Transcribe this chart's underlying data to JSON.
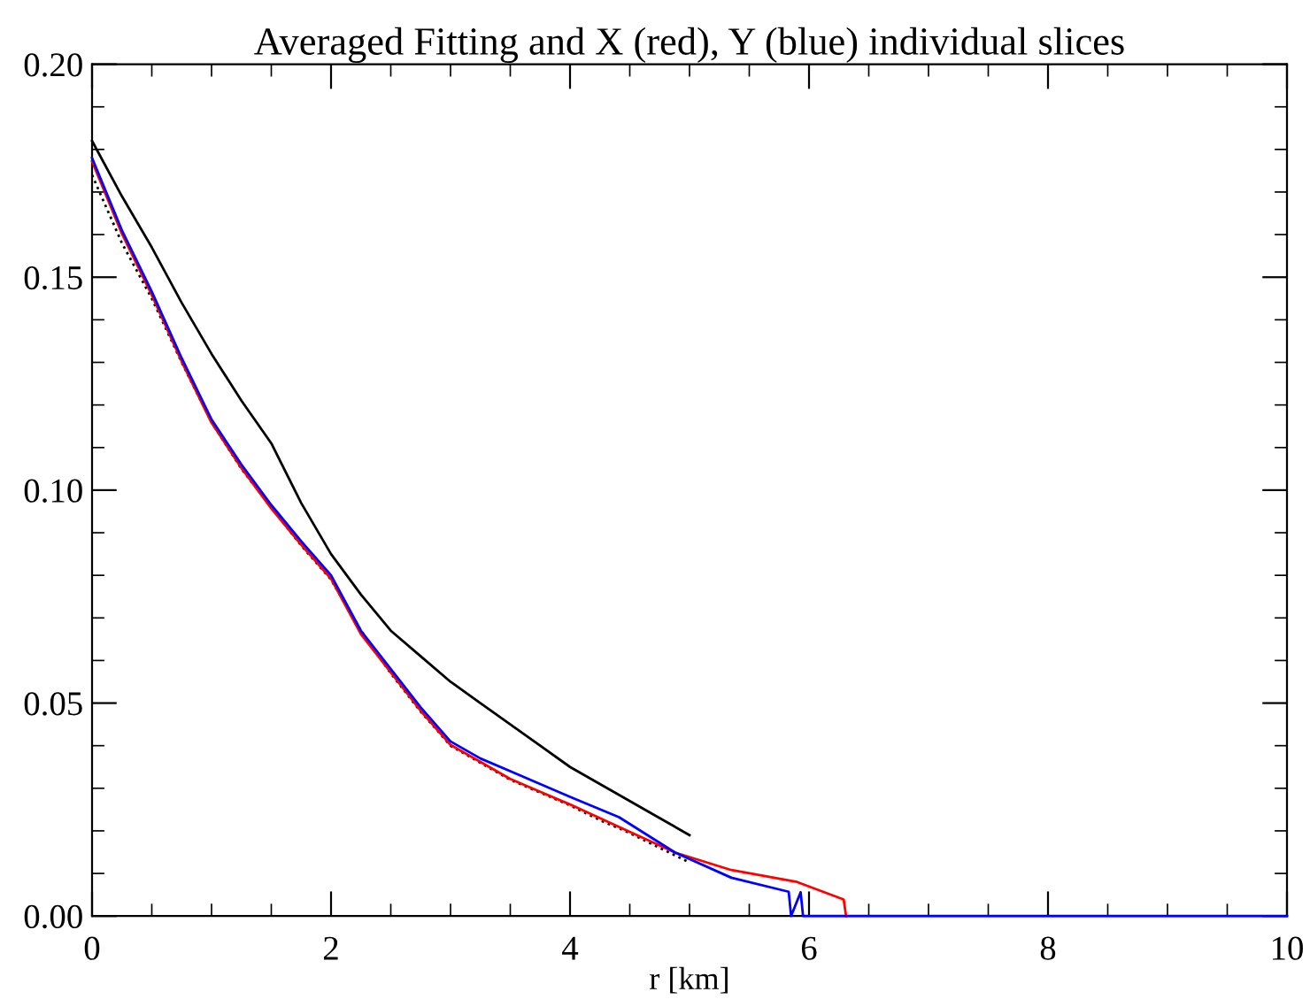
{
  "chart_data": {
    "type": "line",
    "title": "Averaged Fitting and X (red), Y (blue) individual slices",
    "xlabel": "r [km]",
    "xlim": [
      0,
      10
    ],
    "xticks": [
      0,
      2,
      4,
      6,
      8,
      10
    ],
    "ylim": [
      0,
      0.2
    ],
    "yticks": [
      {
        "value": 0,
        "label": "0.00"
      },
      {
        "value": 0.05,
        "label": "0.05"
      },
      {
        "value": 0.1,
        "label": "0.10"
      },
      {
        "value": 0.15,
        "label": "0.15"
      },
      {
        "value": 0.2,
        "label": "0.20"
      }
    ],
    "grid": false,
    "legend": false,
    "series": [
      {
        "color": "#000000",
        "line_style": "dotted",
        "x": [
          0,
          0.25,
          0.5,
          0.75,
          1,
          1.25,
          1.5,
          1.75,
          2,
          2.25,
          2.5,
          2.75,
          3,
          3.25,
          3.5,
          3.75,
          4,
          4.25,
          4.5,
          4.75,
          5
        ],
        "values": [
          0.174,
          0.158,
          0.145,
          0.13,
          0.116,
          0.105,
          0.096,
          0.087,
          0.079,
          0.067,
          0.057,
          0.048,
          0.04,
          0.036,
          0.032,
          0.029,
          0.026,
          0.0225,
          0.0195,
          0.016,
          0.0126
        ]
      },
      {
        "color": "#000000",
        "line_style": "solid",
        "x": [
          0,
          0.25,
          0.5,
          0.75,
          1,
          1.25,
          1.5,
          1.75,
          2,
          2.25,
          2.5,
          2.75,
          3,
          3.25,
          3.5,
          3.75,
          4,
          4.25,
          4.5,
          4.75,
          5
        ],
        "values": [
          0.182,
          0.169,
          0.157,
          0.144,
          0.132,
          0.121,
          0.111,
          0.097,
          0.085,
          0.0755,
          0.067,
          0.061,
          0.055,
          0.05,
          0.045,
          0.04,
          0.035,
          0.031,
          0.027,
          0.023,
          0.019
        ]
      },
      {
        "color": "#ff0000",
        "line_style": "solid",
        "x": [
          0,
          0.25,
          0.5,
          0.75,
          1,
          1.25,
          1.5,
          1.75,
          2,
          2.25,
          2.5,
          2.75,
          3,
          3.25,
          3.5,
          3.75,
          4,
          4.41,
          4.88,
          5.35,
          5.9,
          6.29,
          6.31
        ],
        "values": [
          0.1772,
          0.1602,
          0.1458,
          0.1302,
          0.1158,
          0.1052,
          0.0957,
          0.0872,
          0.0792,
          0.0662,
          0.0572,
          0.0482,
          0.0402,
          0.0362,
          0.0322,
          0.0292,
          0.0262,
          0.0209,
          0.0149,
          0.0108,
          0.008,
          0.0039,
          0
        ]
      },
      {
        "color": "#0000ff",
        "line_style": "solid",
        "x": [
          0,
          0.25,
          0.5,
          0.75,
          1,
          1.25,
          1.5,
          1.75,
          2,
          2.25,
          2.5,
          2.75,
          3,
          3.25,
          3.5,
          3.75,
          4,
          4.41,
          4.88,
          5.35,
          5.83,
          5.85,
          5.93,
          5.95,
          10
        ],
        "values": [
          0.178,
          0.161,
          0.1466,
          0.131,
          0.1166,
          0.106,
          0.0965,
          0.088,
          0.08,
          0.067,
          0.058,
          0.049,
          0.041,
          0.037,
          0.034,
          0.031,
          0.028,
          0.0232,
          0.0149,
          0.009,
          0.0057,
          0,
          0.0056,
          0,
          0
        ]
      }
    ]
  }
}
